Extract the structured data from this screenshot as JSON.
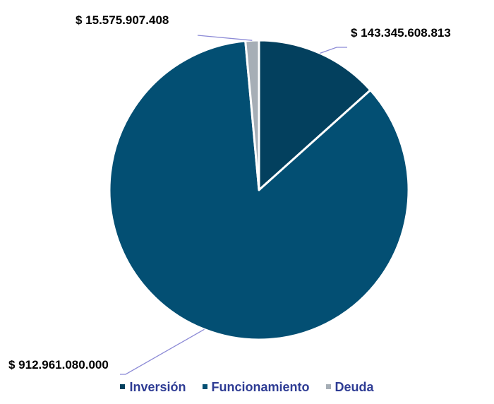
{
  "chart_data": {
    "type": "pie",
    "title": "",
    "slices": [
      {
        "name": "Inversión",
        "value": 143345608813,
        "label": "$ 143.345.608.813",
        "color": "#03405E"
      },
      {
        "name": "Funcionamiento",
        "value": 912961080000,
        "label": "$ 912.961.080.000",
        "color": "#034F73"
      },
      {
        "name": "Deuda",
        "value": 15575907408,
        "label": "$ 15.575.907.408",
        "color": "#A6AEB6"
      }
    ],
    "legend_position": "bottom",
    "leader_line_color": "#8C8AD6",
    "slice_border_color": "#FFFFFF"
  }
}
